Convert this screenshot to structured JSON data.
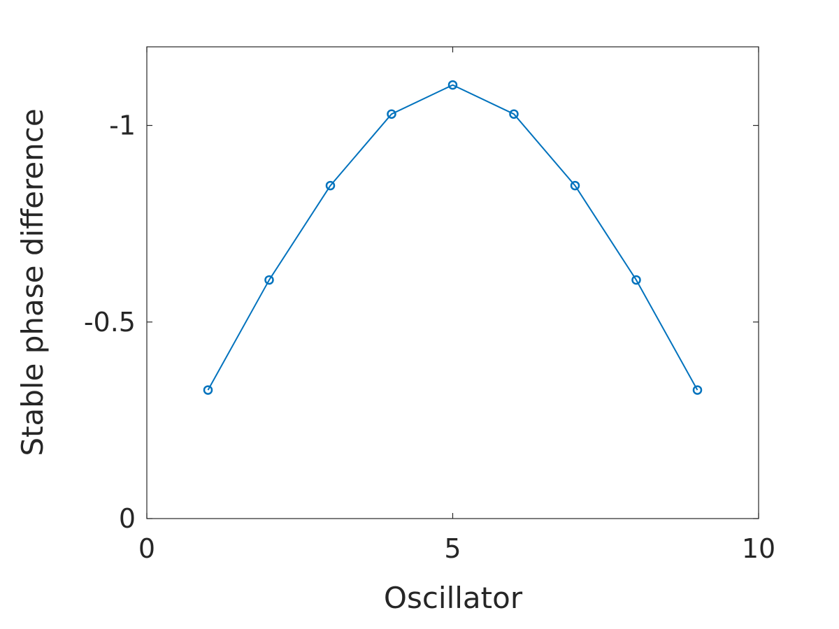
{
  "chart_data": {
    "type": "line",
    "title": "",
    "xlabel": "Oscillator",
    "ylabel": "Stable phase difference",
    "xlim": [
      0,
      10
    ],
    "ylim": [
      0,
      -1.2
    ],
    "y_axis_reversed": true,
    "x_ticks": [
      0,
      5,
      10
    ],
    "x_tick_labels": [
      "0",
      "5",
      "10"
    ],
    "y_ticks": [
      0,
      -0.5,
      -1
    ],
    "y_tick_labels": [
      "0",
      "-0.5",
      "-1"
    ],
    "grid": false,
    "box": true,
    "series": [
      {
        "color": "#0072BD",
        "marker": "circle",
        "x": [
          1,
          2,
          3,
          4,
          5,
          6,
          7,
          8,
          9
        ],
        "y": [
          -0.327,
          -0.607,
          -0.847,
          -1.029,
          -1.103,
          -1.029,
          -0.847,
          -0.607,
          -0.327
        ]
      }
    ]
  }
}
